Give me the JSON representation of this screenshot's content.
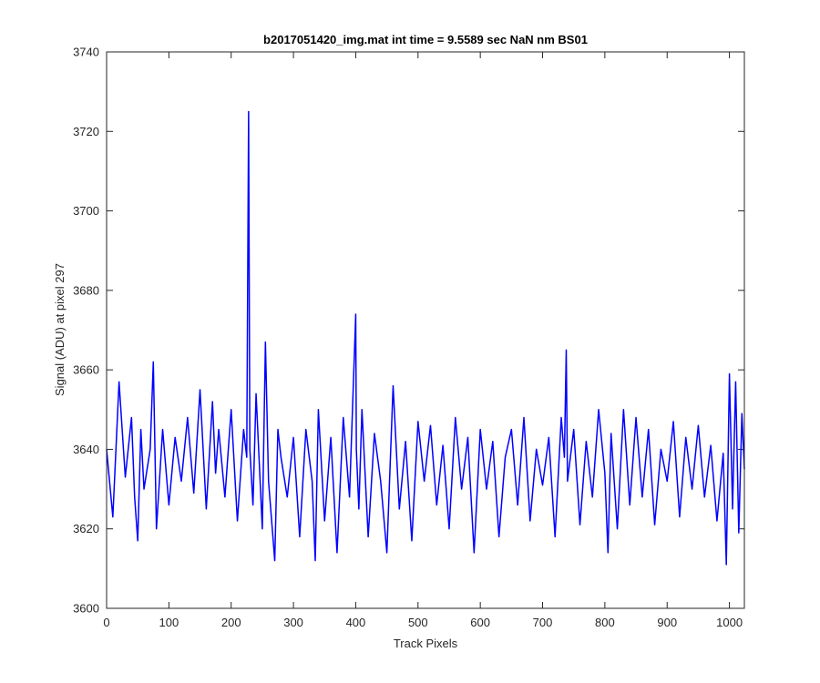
{
  "chart_data": {
    "type": "line",
    "title": "b2017051420_img.mat int time = 9.5589 sec  NaN nm BS01",
    "xlabel": "Track Pixels",
    "ylabel": "Signal (ADU) at pixel 297",
    "xlim": [
      0,
      1024
    ],
    "ylim": [
      3600,
      3740
    ],
    "xticks": [
      0,
      100,
      200,
      300,
      400,
      500,
      600,
      700,
      800,
      900,
      1000
    ],
    "yticks": [
      3600,
      3620,
      3640,
      3660,
      3680,
      3700,
      3720,
      3740
    ],
    "grid": false,
    "legend": "none",
    "line_color": "#0000ff",
    "series": [
      {
        "x": [
          0,
          10,
          20,
          30,
          40,
          45,
          50,
          55,
          60,
          70,
          75,
          80,
          90,
          100,
          110,
          120,
          130,
          140,
          150,
          155,
          160,
          170,
          175,
          180,
          190,
          200,
          210,
          220,
          225,
          228,
          230,
          235,
          240,
          250,
          255,
          260,
          270,
          275,
          280,
          290,
          300,
          310,
          320,
          330,
          335,
          340,
          350,
          360,
          370,
          380,
          390,
          400,
          401,
          405,
          410,
          420,
          430,
          440,
          450,
          460,
          470,
          480,
          490,
          500,
          510,
          520,
          530,
          540,
          550,
          560,
          570,
          580,
          590,
          600,
          610,
          620,
          630,
          640,
          650,
          660,
          670,
          680,
          690,
          700,
          710,
          720,
          730,
          735,
          738,
          740,
          750,
          760,
          770,
          780,
          790,
          800,
          805,
          810,
          820,
          830,
          840,
          850,
          860,
          870,
          880,
          890,
          900,
          910,
          920,
          930,
          940,
          950,
          960,
          970,
          980,
          990,
          995,
          1000,
          1005,
          1010,
          1015,
          1020,
          1024
        ],
        "values": [
          3640,
          3623,
          3657,
          3633,
          3648,
          3628,
          3617,
          3645,
          3630,
          3640,
          3662,
          3620,
          3645,
          3626,
          3643,
          3632,
          3648,
          3629,
          3655,
          3640,
          3625,
          3652,
          3634,
          3645,
          3628,
          3650,
          3622,
          3645,
          3638,
          3725,
          3640,
          3626,
          3654,
          3620,
          3667,
          3632,
          3612,
          3645,
          3638,
          3628,
          3643,
          3618,
          3645,
          3632,
          3612,
          3650,
          3622,
          3643,
          3614,
          3648,
          3628,
          3674,
          3640,
          3625,
          3650,
          3618,
          3644,
          3632,
          3614,
          3656,
          3625,
          3642,
          3617,
          3647,
          3632,
          3646,
          3626,
          3641,
          3620,
          3648,
          3630,
          3643,
          3614,
          3645,
          3630,
          3642,
          3618,
          3638,
          3645,
          3626,
          3648,
          3622,
          3640,
          3631,
          3643,
          3618,
          3648,
          3638,
          3665,
          3632,
          3645,
          3621,
          3642,
          3628,
          3650,
          3634,
          3614,
          3644,
          3620,
          3650,
          3626,
          3648,
          3628,
          3645,
          3621,
          3640,
          3632,
          3647,
          3623,
          3643,
          3630,
          3646,
          3628,
          3641,
          3622,
          3639,
          3611,
          3659,
          3625,
          3657,
          3619,
          3649,
          3635
        ]
      }
    ]
  }
}
